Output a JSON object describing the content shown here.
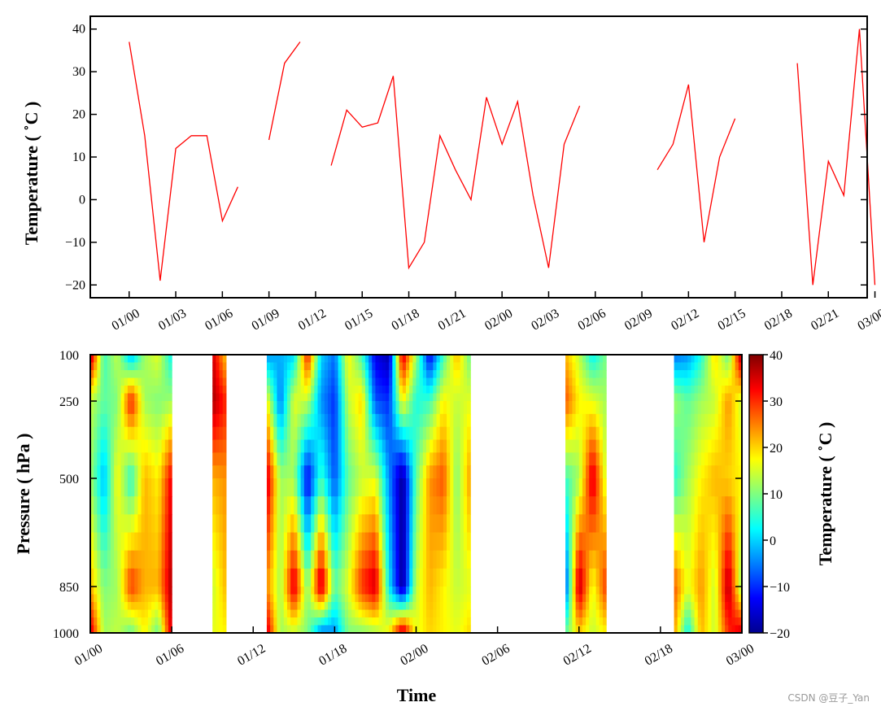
{
  "chart_data": [
    {
      "type": "line",
      "ylabel": "Temperature ( ˚C )",
      "xlabel": "",
      "ylim": [
        -23,
        43
      ],
      "yticks": [
        -20,
        -10,
        0,
        10,
        20,
        30,
        40
      ],
      "ytick_labels": [
        "−20",
        "−10",
        "0",
        "10",
        "20",
        "30",
        "40"
      ],
      "x_unit": "day index from 01/00",
      "xlim": [
        -2.5,
        47.5
      ],
      "xticks": [
        0,
        3,
        6,
        9,
        12,
        15,
        18,
        21,
        24,
        27,
        30,
        33,
        36,
        39,
        42,
        45,
        48
      ],
      "xtick_labels": [
        "01/00",
        "01/03",
        "01/06",
        "01/09",
        "01/12",
        "01/15",
        "01/18",
        "01/21",
        "02/00",
        "02/03",
        "02/06",
        "02/09",
        "02/12",
        "02/15",
        "02/18",
        "02/21",
        "03/00"
      ],
      "line_color": "#ff0000",
      "segments": [
        {
          "x": [
            0,
            1,
            2,
            3,
            4,
            5,
            6,
            7
          ],
          "y": [
            37,
            15,
            -19,
            12,
            15,
            15,
            -5,
            3
          ]
        },
        {
          "x": [
            9,
            10,
            11
          ],
          "y": [
            14,
            32,
            37
          ]
        },
        {
          "x": [
            13,
            14,
            15,
            16,
            17,
            18,
            19,
            20,
            21,
            22,
            23,
            24,
            25,
            26,
            27,
            28,
            29
          ],
          "y": [
            8,
            21,
            17,
            18,
            29,
            -16,
            -10,
            15,
            7,
            0,
            24,
            13,
            23,
            1,
            -16,
            13,
            22
          ]
        },
        {
          "x": [
            34,
            35,
            36,
            37,
            38,
            39
          ],
          "y": [
            7,
            13,
            27,
            -10,
            10,
            19
          ]
        },
        {
          "x": [
            43,
            44,
            45,
            46,
            47,
            48
          ],
          "y": [
            32,
            -20,
            9,
            1,
            40,
            -20
          ]
        }
      ]
    },
    {
      "type": "heatmap",
      "xlabel": "Time",
      "ylabel": "Pressure ( hPa )",
      "colorbar_label": "Temperature ( ˚C )",
      "colormap": "jet",
      "clim": [
        -20,
        40
      ],
      "colorbar_ticks": [
        -20,
        -10,
        0,
        10,
        20,
        30,
        40
      ],
      "colorbar_tick_labels": [
        "−20",
        "−10",
        "0",
        "10",
        "20",
        "30",
        "40"
      ],
      "pressure_levels_hPa": [
        100,
        250,
        500,
        850,
        1000
      ],
      "ytick_labels": [
        "100",
        "250",
        "500",
        "850",
        "1000"
      ],
      "xticks": [
        0,
        6,
        12,
        18,
        24,
        30,
        36,
        42,
        48
      ],
      "xtick_labels": [
        "01/00",
        "01/06",
        "01/12",
        "01/18",
        "02/00",
        "02/06",
        "02/12",
        "02/18",
        "03/00"
      ],
      "xlim": [
        0,
        48
      ],
      "missing_days": [
        7,
        8,
        11,
        12,
        29,
        30,
        31,
        32,
        33,
        34,
        39,
        40,
        41,
        42
      ],
      "columns": [
        {
          "day": 0,
          "t": [
            38,
            14,
            12,
            22,
            36
          ]
        },
        {
          "day": 1,
          "t": [
            6,
            8,
            -2,
            10,
            12
          ]
        },
        {
          "day": 2,
          "t": [
            14,
            10,
            18,
            12,
            14
          ]
        },
        {
          "day": 3,
          "t": [
            -3,
            32,
            4,
            30,
            8
          ]
        },
        {
          "day": 4,
          "t": [
            12,
            12,
            22,
            22,
            18
          ]
        },
        {
          "day": 5,
          "t": [
            16,
            10,
            18,
            22,
            8
          ]
        },
        {
          "day": 6,
          "t": [
            2,
            12,
            34,
            38,
            36
          ]
        },
        {
          "day": 9,
          "t": [
            36,
            38,
            22,
            14,
            16
          ]
        },
        {
          "day": 10,
          "t": [
            20,
            30,
            24,
            22,
            18
          ]
        },
        {
          "day": 13,
          "t": [
            -4,
            18,
            36,
            24,
            36
          ]
        },
        {
          "day": 14,
          "t": [
            -2,
            -6,
            12,
            12,
            12
          ]
        },
        {
          "day": 15,
          "t": [
            0,
            16,
            12,
            36,
            14
          ]
        },
        {
          "day": 16,
          "t": [
            32,
            14,
            -14,
            10,
            10
          ]
        },
        {
          "day": 17,
          "t": [
            0,
            -4,
            6,
            38,
            -6
          ]
        },
        {
          "day": 18,
          "t": [
            -6,
            -10,
            -8,
            8,
            -4
          ]
        },
        {
          "day": 19,
          "t": [
            18,
            14,
            8,
            16,
            10
          ]
        },
        {
          "day": 20,
          "t": [
            6,
            20,
            14,
            30,
            10
          ]
        },
        {
          "day": 21,
          "t": [
            -14,
            -8,
            16,
            36,
            12
          ]
        },
        {
          "day": 22,
          "t": [
            -18,
            -10,
            -4,
            2,
            18
          ]
        },
        {
          "day": 23,
          "t": [
            36,
            18,
            -20,
            -20,
            38
          ]
        },
        {
          "day": 24,
          "t": [
            12,
            4,
            8,
            14,
            16
          ]
        },
        {
          "day": 25,
          "t": [
            -14,
            6,
            24,
            22,
            20
          ]
        },
        {
          "day": 26,
          "t": [
            6,
            18,
            28,
            18,
            18
          ]
        },
        {
          "day": 27,
          "t": [
            22,
            14,
            10,
            14,
            16
          ]
        },
        {
          "day": 28,
          "t": [
            8,
            16,
            24,
            16,
            20
          ]
        },
        {
          "day": 35,
          "t": [
            22,
            28,
            6,
            -10,
            8
          ]
        },
        {
          "day": 36,
          "t": [
            14,
            18,
            12,
            38,
            20
          ]
        },
        {
          "day": 37,
          "t": [
            2,
            16,
            36,
            16,
            14
          ]
        },
        {
          "day": 38,
          "t": [
            10,
            12,
            14,
            30,
            18
          ]
        },
        {
          "day": 43,
          "t": [
            -6,
            12,
            4,
            28,
            24
          ]
        },
        {
          "day": 44,
          "t": [
            -4,
            8,
            12,
            16,
            2
          ]
        },
        {
          "day": 45,
          "t": [
            4,
            12,
            18,
            24,
            22
          ]
        },
        {
          "day": 46,
          "t": [
            20,
            14,
            22,
            14,
            14
          ]
        },
        {
          "day": 47,
          "t": [
            8,
            24,
            20,
            38,
            30
          ]
        },
        {
          "day": 48,
          "t": [
            40,
            14,
            18,
            10,
            36
          ]
        }
      ]
    }
  ],
  "watermark": "CSDN @豆子_Yan"
}
